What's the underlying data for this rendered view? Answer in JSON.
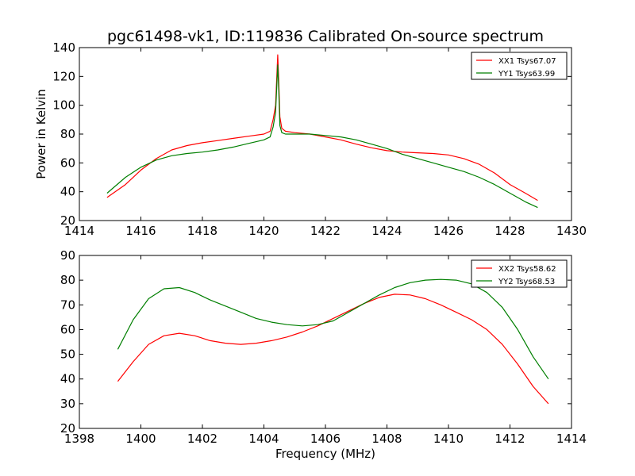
{
  "title": "pgc61498-vk1, ID:119836 Calibrated On-source spectrum",
  "chart_data": [
    {
      "type": "line",
      "title": "pgc61498-vk1, ID:119836 Calibrated On-source spectrum",
      "xlabel": "",
      "ylabel": "Power in Kelvin",
      "xlim": [
        1414,
        1430
      ],
      "ylim": [
        20,
        140
      ],
      "xticks": [
        1414,
        1416,
        1418,
        1420,
        1422,
        1424,
        1426,
        1428,
        1430
      ],
      "yticks": [
        20,
        40,
        60,
        80,
        100,
        120,
        140
      ],
      "grid": false,
      "legend_position": "top-right",
      "series": [
        {
          "name": "XX1 Tsys67.07",
          "color": "#ff0000",
          "x": [
            1414.9,
            1415.5,
            1416,
            1416.5,
            1417,
            1417.5,
            1418,
            1418.5,
            1419,
            1419.5,
            1420,
            1420.2,
            1420.3,
            1420.38,
            1420.45,
            1420.48,
            1420.52,
            1420.58,
            1420.7,
            1421,
            1421.5,
            1422,
            1422.5,
            1423,
            1423.5,
            1424,
            1424.5,
            1425,
            1425.5,
            1426,
            1426.5,
            1427,
            1427.5,
            1428,
            1428.5,
            1428.9
          ],
          "y": [
            36,
            45,
            55,
            63,
            69,
            72,
            74,
            75.5,
            77,
            78.5,
            80,
            82,
            90,
            100,
            135,
            118,
            92,
            84,
            82,
            81,
            80,
            78,
            76,
            73,
            70.5,
            68.5,
            67.5,
            67,
            66.5,
            65.5,
            63,
            59,
            53,
            45,
            39,
            34
          ]
        },
        {
          "name": "YY1 Tsys63.99",
          "color": "#007f00",
          "x": [
            1414.9,
            1415.5,
            1416,
            1416.5,
            1417,
            1417.5,
            1418,
            1418.5,
            1419,
            1419.5,
            1420,
            1420.2,
            1420.3,
            1420.38,
            1420.45,
            1420.48,
            1420.52,
            1420.58,
            1420.7,
            1421,
            1421.5,
            1422,
            1422.5,
            1423,
            1423.5,
            1424,
            1424.5,
            1425,
            1425.5,
            1426,
            1426.5,
            1427,
            1427.5,
            1428,
            1428.5,
            1428.9
          ],
          "y": [
            39,
            50,
            57,
            62,
            65,
            66.5,
            67.5,
            69,
            71,
            73.5,
            76,
            78,
            85,
            95,
            128,
            112,
            86,
            81,
            80,
            80,
            80,
            79,
            78,
            76,
            73,
            70,
            66,
            63,
            60,
            57,
            54,
            50,
            45,
            39,
            33,
            29
          ]
        }
      ]
    },
    {
      "type": "line",
      "title": "",
      "xlabel": "Frequency (MHz)",
      "ylabel": "",
      "xlim": [
        1398,
        1414
      ],
      "ylim": [
        20,
        90
      ],
      "xticks": [
        1398,
        1400,
        1402,
        1404,
        1406,
        1408,
        1410,
        1412,
        1414
      ],
      "yticks": [
        20,
        30,
        40,
        50,
        60,
        70,
        80,
        90
      ],
      "grid": false,
      "legend_position": "top-right",
      "series": [
        {
          "name": "XX2 Tsys58.62",
          "color": "#ff0000",
          "x": [
            1399.25,
            1399.75,
            1400.25,
            1400.75,
            1401.25,
            1401.75,
            1402.25,
            1402.75,
            1403.25,
            1403.75,
            1404.25,
            1404.75,
            1405.25,
            1405.75,
            1406.25,
            1406.75,
            1407.25,
            1407.75,
            1408.25,
            1408.75,
            1409.25,
            1409.75,
            1410.25,
            1410.75,
            1411.25,
            1411.75,
            1412.25,
            1412.75,
            1413.25
          ],
          "y": [
            39,
            47,
            54,
            57.5,
            58.5,
            57.5,
            55.5,
            54.5,
            54,
            54.5,
            55.5,
            57,
            59,
            61.5,
            64.5,
            67.5,
            70.5,
            73,
            74.3,
            74,
            72.5,
            70,
            67,
            64,
            60,
            54,
            46,
            37,
            30
          ]
        },
        {
          "name": "YY2 Tsys68.53",
          "color": "#007f00",
          "x": [
            1399.25,
            1399.75,
            1400.25,
            1400.75,
            1401.25,
            1401.75,
            1402.25,
            1402.75,
            1403.25,
            1403.75,
            1404.25,
            1404.75,
            1405.25,
            1405.75,
            1406.25,
            1406.75,
            1407.25,
            1407.75,
            1408.25,
            1408.75,
            1409.25,
            1409.75,
            1410.25,
            1410.75,
            1411.25,
            1411.75,
            1412.25,
            1412.75,
            1413.25
          ],
          "y": [
            52,
            64,
            72.5,
            76.5,
            77,
            75,
            72,
            69.5,
            67,
            64.5,
            63,
            62,
            61.5,
            62,
            63.5,
            67,
            70.5,
            74,
            77,
            79,
            80,
            80.3,
            80,
            78.5,
            75,
            69,
            60,
            49,
            40
          ]
        }
      ]
    }
  ]
}
